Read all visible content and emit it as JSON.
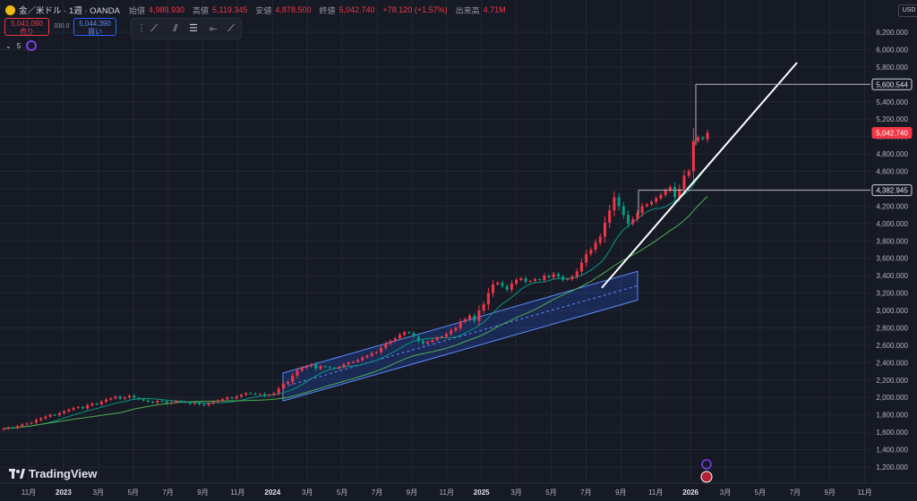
{
  "header": {
    "title": "金／米ドル · 1週 · OANDA",
    "open_label": "始値",
    "open": "4,989.930",
    "high_label": "高値",
    "high": "5,119.345",
    "low_label": "安値",
    "low": "4,878.500",
    "close_label": "終値",
    "close": "5,042.740",
    "change": "+78.120 (+1.57%)",
    "volume_label": "出来高",
    "volume": "4.71M"
  },
  "trade": {
    "sell_price": "5,041.090",
    "sell_label": "売り",
    "spread": "330.0",
    "buy_price": "5,044.390",
    "buy_label": "買い"
  },
  "indicator": {
    "label": "5"
  },
  "currency": "USD",
  "brand": "TradingView",
  "colors": {
    "up": "#089981",
    "down": "#f23645",
    "ma_fast": "#089981",
    "ma_slow": "#4caf50",
    "channel": "#2962ff",
    "bg": "#161a25",
    "grid": "#232734"
  },
  "icons": {
    "symbol": "gold-coin-icon",
    "tools": [
      "trend-line-icon",
      "ray-icon",
      "parallel-channel-icon",
      "horizontal-ray-icon",
      "path-icon"
    ],
    "indicator": "eye-icon"
  },
  "chart_data": {
    "type": "candlestick",
    "y_axis": {
      "min": 1100,
      "max": 6300,
      "ticks": [
        1200,
        1400,
        1600,
        1800,
        2000,
        2200,
        2400,
        2600,
        2800,
        3000,
        3200,
        3400,
        3600,
        3800,
        4000,
        4200,
        4400,
        4600,
        4800,
        5000,
        5200,
        5400,
        5600,
        5800,
        6000,
        6200
      ]
    },
    "x_ticks": [
      "11月",
      "2023",
      "3月",
      "5月",
      "7月",
      "9月",
      "11月",
      "2024",
      "3月",
      "5月",
      "7月",
      "9月",
      "11月",
      "2025",
      "3月",
      "5月",
      "7月",
      "9月",
      "11月",
      "2026",
      "3月",
      "5月",
      "7月",
      "9月",
      "11月"
    ],
    "x_tick_bold": [
      false,
      true,
      false,
      false,
      false,
      false,
      false,
      true,
      false,
      false,
      false,
      false,
      false,
      true,
      false,
      false,
      false,
      false,
      false,
      true,
      false,
      false,
      false,
      false,
      false
    ],
    "price_labels": [
      {
        "value": 5600.544,
        "text": "5,600.544",
        "style": "outline"
      },
      {
        "value": 5042.74,
        "text": "5,042.740",
        "style": "red"
      },
      {
        "value": 4382.945,
        "text": "4,382.945",
        "style": "outline"
      }
    ],
    "weekly_closes": [
      1640,
      1655,
      1648,
      1670,
      1690,
      1700,
      1710,
      1740,
      1760,
      1780,
      1800,
      1795,
      1820,
      1840,
      1860,
      1880,
      1890,
      1875,
      1910,
      1930,
      1920,
      1950,
      1975,
      1990,
      2010,
      1985,
      2000,
      2020,
      1995,
      1980,
      1965,
      1950,
      1940,
      1960,
      1955,
      1930,
      1945,
      1960,
      1950,
      1940,
      1925,
      1935,
      1920,
      1910,
      1930,
      1950,
      1965,
      1980,
      2000,
      1990,
      2010,
      2030,
      2050,
      2045,
      2035,
      2040,
      2020,
      2030,
      2050,
      2100,
      2160,
      2180,
      2250,
      2310,
      2340,
      2360,
      2380,
      2330,
      2360,
      2350,
      2340,
      2330,
      2350,
      2380,
      2400,
      2410,
      2430,
      2460,
      2480,
      2510,
      2520,
      2570,
      2620,
      2650,
      2680,
      2720,
      2750,
      2740,
      2700,
      2650,
      2620,
      2640,
      2660,
      2690,
      2700,
      2730,
      2770,
      2800,
      2870,
      2900,
      2940,
      2880,
      3000,
      3070,
      3200,
      3300,
      3320,
      3280,
      3240,
      3310,
      3350,
      3370,
      3330,
      3340,
      3360,
      3350,
      3400,
      3380,
      3420,
      3390,
      3350,
      3360,
      3390,
      3450,
      3550,
      3650,
      3700,
      3780,
      3850,
      4010,
      4150,
      4300,
      4200,
      4100,
      4000,
      4050,
      4120,
      4200,
      4220,
      4250,
      4290,
      4330,
      4380,
      4420,
      4300,
      4400,
      4550,
      4600,
      4950,
      4990,
      4970,
      5042.74
    ]
  }
}
